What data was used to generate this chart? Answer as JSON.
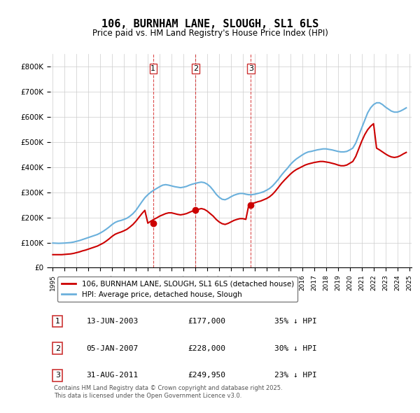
{
  "title": "106, BURNHAM LANE, SLOUGH, SL1 6LS",
  "subtitle": "Price paid vs. HM Land Registry's House Price Index (HPI)",
  "ylabel": "",
  "ylim": [
    0,
    850000
  ],
  "yticks": [
    0,
    100000,
    200000,
    300000,
    400000,
    500000,
    600000,
    700000,
    800000
  ],
  "ytick_labels": [
    "£0",
    "£100K",
    "£200K",
    "£300K",
    "£400K",
    "£500K",
    "£600K",
    "£700K",
    "£800K"
  ],
  "hpi_color": "#6ab0dc",
  "price_color": "#cc0000",
  "marker_color": "#cc0000",
  "vline_color": "#cc0000",
  "grid_color": "#cccccc",
  "background_color": "#ffffff",
  "legend_line1": "106, BURNHAM LANE, SLOUGH, SL1 6LS (detached house)",
  "legend_line2": "HPI: Average price, detached house, Slough",
  "transactions": [
    {
      "num": 1,
      "date_label": "13-JUN-2003",
      "price_label": "£177,000",
      "hpi_label": "35% ↓ HPI",
      "year": 2003.45,
      "price": 177000
    },
    {
      "num": 2,
      "date_label": "05-JAN-2007",
      "price_label": "£228,000",
      "hpi_label": "30% ↓ HPI",
      "year": 2007.02,
      "price": 228000
    },
    {
      "num": 3,
      "date_label": "31-AUG-2011",
      "price_label": "£249,950",
      "hpi_label": "23% ↓ HPI",
      "year": 2011.67,
      "price": 249950
    }
  ],
  "copyright_text": "Contains HM Land Registry data © Crown copyright and database right 2025.\nThis data is licensed under the Open Government Licence v3.0.",
  "hpi_data": {
    "years": [
      1995.0,
      1995.25,
      1995.5,
      1995.75,
      1996.0,
      1996.25,
      1996.5,
      1996.75,
      1997.0,
      1997.25,
      1997.5,
      1997.75,
      1998.0,
      1998.25,
      1998.5,
      1998.75,
      1999.0,
      1999.25,
      1999.5,
      1999.75,
      2000.0,
      2000.25,
      2000.5,
      2000.75,
      2001.0,
      2001.25,
      2001.5,
      2001.75,
      2002.0,
      2002.25,
      2002.5,
      2002.75,
      2003.0,
      2003.25,
      2003.5,
      2003.75,
      2004.0,
      2004.25,
      2004.5,
      2004.75,
      2005.0,
      2005.25,
      2005.5,
      2005.75,
      2006.0,
      2006.25,
      2006.5,
      2006.75,
      2007.0,
      2007.25,
      2007.5,
      2007.75,
      2008.0,
      2008.25,
      2008.5,
      2008.75,
      2009.0,
      2009.25,
      2009.5,
      2009.75,
      2010.0,
      2010.25,
      2010.5,
      2010.75,
      2011.0,
      2011.25,
      2011.5,
      2011.75,
      2012.0,
      2012.25,
      2012.5,
      2012.75,
      2013.0,
      2013.25,
      2013.5,
      2013.75,
      2014.0,
      2014.25,
      2014.5,
      2014.75,
      2015.0,
      2015.25,
      2015.5,
      2015.75,
      2016.0,
      2016.25,
      2016.5,
      2016.75,
      2017.0,
      2017.25,
      2017.5,
      2017.75,
      2018.0,
      2018.25,
      2018.5,
      2018.75,
      2019.0,
      2019.25,
      2019.5,
      2019.75,
      2020.0,
      2020.25,
      2020.5,
      2020.75,
      2021.0,
      2021.25,
      2021.5,
      2021.75,
      2022.0,
      2022.25,
      2022.5,
      2022.75,
      2023.0,
      2023.25,
      2023.5,
      2023.75,
      2024.0,
      2024.25,
      2024.5,
      2024.75
    ],
    "values": [
      98000,
      97500,
      97000,
      97500,
      98000,
      99000,
      100000,
      102000,
      105000,
      108000,
      112000,
      116000,
      120000,
      124000,
      128000,
      132000,
      138000,
      145000,
      153000,
      162000,
      172000,
      180000,
      185000,
      188000,
      192000,
      197000,
      205000,
      215000,
      228000,
      245000,
      262000,
      278000,
      290000,
      300000,
      308000,
      315000,
      322000,
      328000,
      330000,
      328000,
      325000,
      322000,
      320000,
      318000,
      320000,
      323000,
      328000,
      332000,
      335000,
      338000,
      340000,
      338000,
      332000,
      322000,
      308000,
      292000,
      280000,
      272000,
      270000,
      275000,
      282000,
      288000,
      292000,
      295000,
      295000,
      292000,
      290000,
      290000,
      292000,
      295000,
      298000,
      302000,
      308000,
      315000,
      325000,
      338000,
      352000,
      368000,
      382000,
      395000,
      410000,
      422000,
      432000,
      440000,
      448000,
      455000,
      460000,
      462000,
      465000,
      468000,
      470000,
      472000,
      472000,
      470000,
      468000,
      465000,
      462000,
      460000,
      460000,
      462000,
      468000,
      475000,
      495000,
      525000,
      555000,
      585000,
      615000,
      635000,
      648000,
      655000,
      655000,
      648000,
      638000,
      630000,
      622000,
      618000,
      618000,
      622000,
      628000,
      635000
    ]
  },
  "price_data": {
    "years": [
      1995.0,
      1995.25,
      1995.5,
      1995.75,
      1996.0,
      1996.25,
      1996.5,
      1996.75,
      1997.0,
      1997.25,
      1997.5,
      1997.75,
      1998.0,
      1998.25,
      1998.5,
      1998.75,
      1999.0,
      1999.25,
      1999.5,
      1999.75,
      2000.0,
      2000.25,
      2000.5,
      2000.75,
      2001.0,
      2001.25,
      2001.5,
      2001.75,
      2002.0,
      2002.25,
      2002.5,
      2002.75,
      2003.0,
      2003.25,
      2003.5,
      2003.75,
      2004.0,
      2004.25,
      2004.5,
      2004.75,
      2005.0,
      2005.25,
      2005.5,
      2005.75,
      2006.0,
      2006.25,
      2006.5,
      2006.75,
      2007.0,
      2007.25,
      2007.5,
      2007.75,
      2008.0,
      2008.25,
      2008.5,
      2008.75,
      2009.0,
      2009.25,
      2009.5,
      2009.75,
      2010.0,
      2010.25,
      2010.5,
      2010.75,
      2011.0,
      2011.25,
      2011.5,
      2011.75,
      2012.0,
      2012.25,
      2012.5,
      2012.75,
      2013.0,
      2013.25,
      2013.5,
      2013.75,
      2014.0,
      2014.25,
      2014.5,
      2014.75,
      2015.0,
      2015.25,
      2015.5,
      2015.75,
      2016.0,
      2016.25,
      2016.5,
      2016.75,
      2017.0,
      2017.25,
      2017.5,
      2017.75,
      2018.0,
      2018.25,
      2018.5,
      2018.75,
      2019.0,
      2019.25,
      2019.5,
      2019.75,
      2020.0,
      2020.25,
      2020.5,
      2020.75,
      2021.0,
      2021.25,
      2021.5,
      2021.75,
      2022.0,
      2022.25,
      2022.5,
      2022.75,
      2023.0,
      2023.25,
      2023.5,
      2023.75,
      2024.0,
      2024.25,
      2024.5,
      2024.75
    ],
    "values": [
      52000,
      52000,
      52000,
      52000,
      53000,
      54000,
      55000,
      57000,
      60000,
      63000,
      67000,
      70000,
      74000,
      78000,
      82000,
      86000,
      92000,
      98000,
      106000,
      115000,
      125000,
      133000,
      138000,
      142000,
      147000,
      153000,
      162000,
      172000,
      185000,
      200000,
      215000,
      228000,
      177000,
      185000,
      192000,
      198000,
      205000,
      210000,
      215000,
      218000,
      218000,
      215000,
      212000,
      210000,
      212000,
      215000,
      220000,
      225000,
      228000,
      232000,
      235000,
      232000,
      225000,
      215000,
      205000,
      192000,
      182000,
      175000,
      172000,
      176000,
      182000,
      188000,
      192000,
      195000,
      195000,
      192000,
      249950,
      255000,
      258000,
      262000,
      265000,
      270000,
      275000,
      282000,
      292000,
      305000,
      320000,
      335000,
      348000,
      360000,
      372000,
      382000,
      390000,
      396000,
      402000,
      408000,
      412000,
      415000,
      418000,
      420000,
      422000,
      422000,
      420000,
      418000,
      415000,
      412000,
      408000,
      405000,
      405000,
      408000,
      415000,
      422000,
      442000,
      472000,
      502000,
      528000,
      548000,
      562000,
      572000,
      475000,
      468000,
      460000,
      452000,
      445000,
      440000,
      438000,
      440000,
      445000,
      452000,
      458000
    ]
  },
  "xtick_years": [
    1995,
    1996,
    1997,
    1998,
    1999,
    2000,
    2001,
    2002,
    2003,
    2004,
    2005,
    2006,
    2007,
    2008,
    2009,
    2010,
    2011,
    2012,
    2013,
    2014,
    2015,
    2016,
    2017,
    2018,
    2019,
    2020,
    2021,
    2022,
    2023,
    2024,
    2025
  ]
}
